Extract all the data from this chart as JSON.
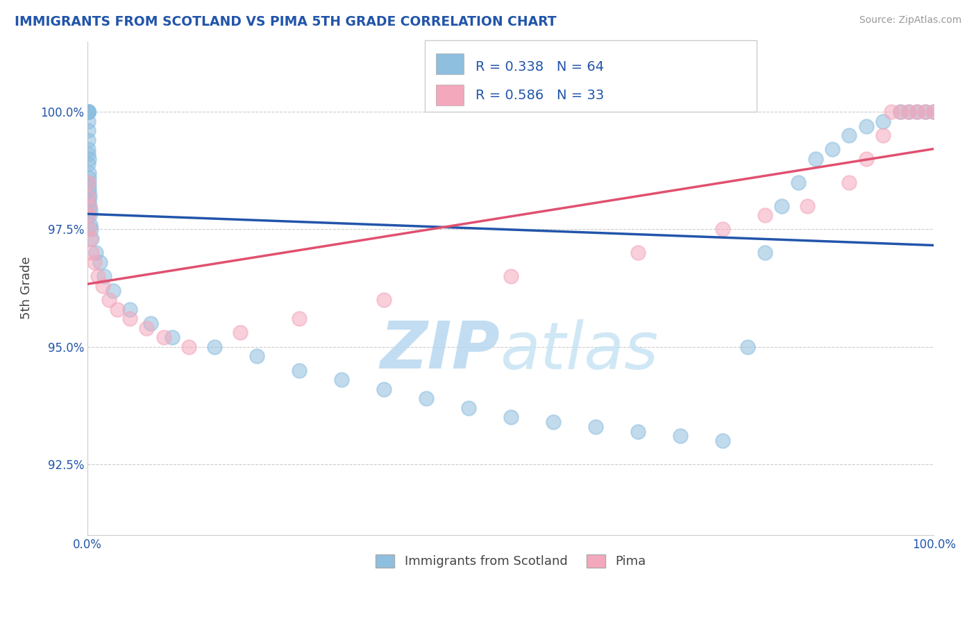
{
  "title": "IMMIGRANTS FROM SCOTLAND VS PIMA 5TH GRADE CORRELATION CHART",
  "source_text": "Source: ZipAtlas.com",
  "ylabel": "5th Grade",
  "legend_label_1": "Immigrants from Scotland",
  "legend_label_2": "Pima",
  "r1": 0.338,
  "n1": 64,
  "r2": 0.586,
  "n2": 33,
  "color1": "#8fbfdf",
  "color2": "#f4a8bc",
  "line_color1": "#2255aa",
  "line_color2": "#e05070",
  "watermark_color": "#d8eaf8",
  "background_color": "#ffffff",
  "title_color": "#2255aa",
  "source_color": "#999999",
  "xlim": [
    0,
    100
  ],
  "ylim": [
    91.0,
    101.5
  ],
  "yticks": [
    92.5,
    95.0,
    97.5,
    100.0
  ],
  "ytick_labels": [
    "92.5%",
    "95.0%",
    "97.5%",
    "100.0%"
  ],
  "xticks": [
    0,
    100
  ],
  "xtick_labels": [
    "0.0%",
    "100.0%"
  ],
  "grid_color": "#cccccc",
  "scatter1_x": [
    0.05,
    0.05,
    0.05,
    0.05,
    0.05,
    0.08,
    0.08,
    0.08,
    0.1,
    0.1,
    0.1,
    0.1,
    0.1,
    0.12,
    0.12,
    0.12,
    0.15,
    0.15,
    0.15,
    0.18,
    0.18,
    0.2,
    0.2,
    0.22,
    0.25,
    0.25,
    0.3,
    0.35,
    0.4,
    0.5,
    1.0,
    1.5,
    2.0,
    3.0,
    5.0,
    7.5,
    10.0,
    15.0,
    20.0,
    25.0,
    30.0,
    35.0,
    40.0,
    45.0,
    50.0,
    55.0,
    60.0,
    65.0,
    70.0,
    75.0,
    78.0,
    80.0,
    82.0,
    84.0,
    86.0,
    88.0,
    90.0,
    92.0,
    94.0,
    96.0,
    97.0,
    98.0,
    99.0,
    100.0
  ],
  "scatter1_y": [
    100.0,
    100.0,
    100.0,
    100.0,
    100.0,
    100.0,
    100.0,
    100.0,
    100.0,
    100.0,
    99.8,
    99.6,
    99.2,
    99.4,
    99.1,
    98.9,
    99.0,
    98.7,
    98.5,
    98.6,
    98.3,
    98.4,
    98.1,
    98.2,
    98.0,
    97.8,
    97.9,
    97.6,
    97.5,
    97.3,
    97.0,
    96.8,
    96.5,
    96.2,
    95.8,
    95.5,
    95.2,
    95.0,
    94.8,
    94.5,
    94.3,
    94.1,
    93.9,
    93.7,
    93.5,
    93.4,
    93.3,
    93.2,
    93.1,
    93.0,
    95.0,
    97.0,
    98.0,
    98.5,
    99.0,
    99.2,
    99.5,
    99.7,
    99.8,
    100.0,
    100.0,
    100.0,
    100.0,
    100.0
  ],
  "scatter2_x": [
    0.05,
    0.08,
    0.12,
    0.15,
    0.2,
    0.3,
    0.5,
    0.8,
    1.2,
    1.8,
    2.5,
    3.5,
    5.0,
    7.0,
    9.0,
    12.0,
    18.0,
    25.0,
    35.0,
    50.0,
    65.0,
    75.0,
    80.0,
    85.0,
    90.0,
    92.0,
    94.0,
    95.0,
    96.0,
    97.0,
    98.0,
    99.0,
    100.0
  ],
  "scatter2_y": [
    98.5,
    98.2,
    97.8,
    98.0,
    97.5,
    97.3,
    97.0,
    96.8,
    96.5,
    96.3,
    96.0,
    95.8,
    95.6,
    95.4,
    95.2,
    95.0,
    95.3,
    95.6,
    96.0,
    96.5,
    97.0,
    97.5,
    97.8,
    98.0,
    98.5,
    99.0,
    99.5,
    100.0,
    100.0,
    100.0,
    100.0,
    100.0,
    100.0
  ]
}
